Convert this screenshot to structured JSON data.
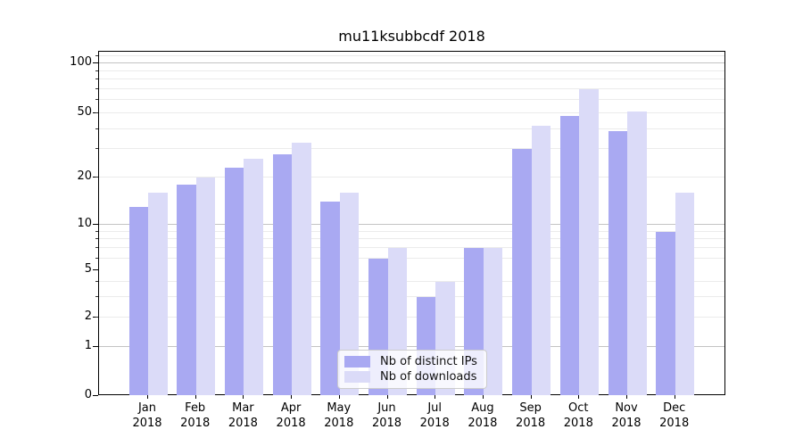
{
  "chart_data": {
    "type": "bar",
    "title": "mu11ksubbcdf 2018",
    "categories": [
      "Jan",
      "Feb",
      "Mar",
      "Apr",
      "May",
      "Jun",
      "Jul",
      "Aug",
      "Sep",
      "Oct",
      "Nov",
      "Dec"
    ],
    "year_label": "2018",
    "series": [
      {
        "name": "Nb of distinct IPs",
        "color": "#a9a9f2",
        "values": [
          13,
          18,
          23,
          28,
          14,
          6,
          3,
          7,
          30,
          48,
          39,
          9
        ]
      },
      {
        "name": "Nb of downloads",
        "color": "#dbdbf8",
        "values": [
          16,
          20,
          26,
          33,
          16,
          7,
          4,
          7,
          42,
          70,
          51,
          16
        ]
      }
    ],
    "xlabel": "",
    "ylabel": "",
    "y_axis": {
      "scale": "symlog",
      "ticks": [
        0,
        1,
        2,
        5,
        10,
        20,
        50,
        100
      ],
      "major_gridlines": [
        1,
        10,
        100
      ],
      "minor_gridlines": [
        2,
        3,
        4,
        6,
        7,
        8,
        9,
        20,
        30,
        40,
        50,
        60,
        70,
        80,
        90,
        110
      ],
      "range": [
        0,
        117
      ]
    },
    "grid": true,
    "legend_position": "lower center"
  }
}
